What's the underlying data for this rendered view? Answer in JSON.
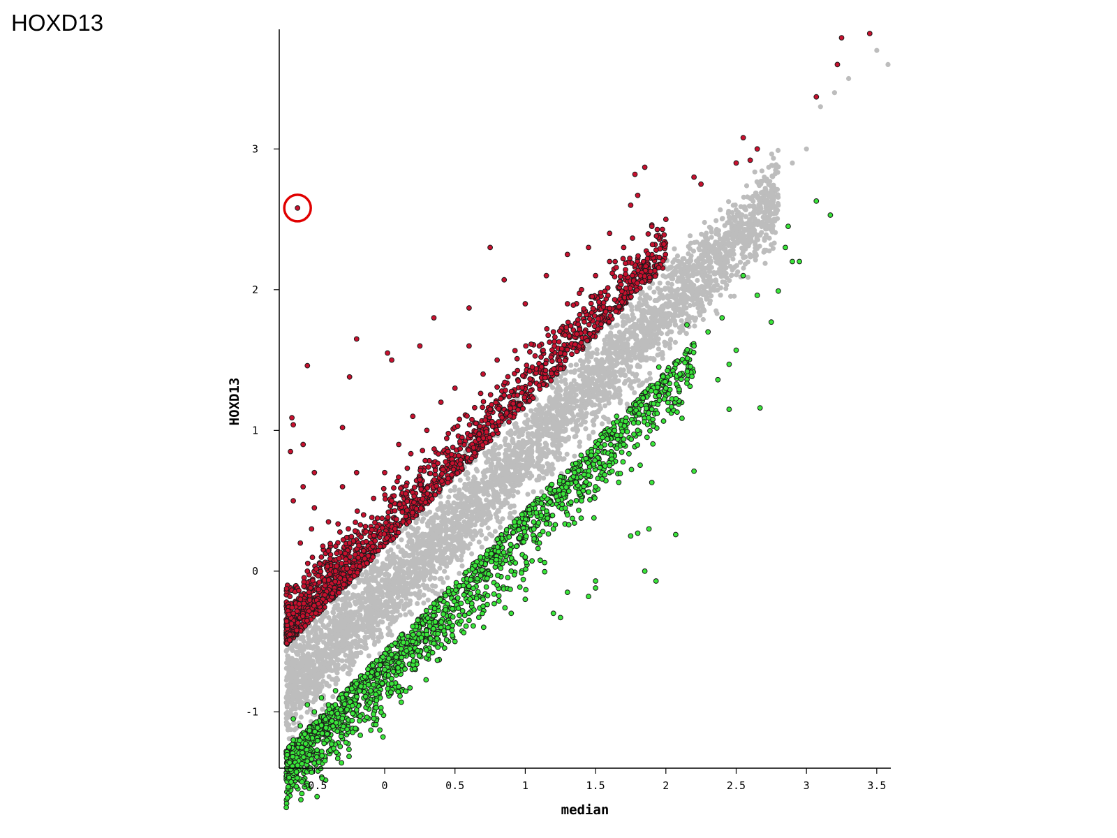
{
  "figure_title": "HOXD13",
  "chart_data": {
    "type": "scatter",
    "title": "",
    "xlabel": "median",
    "ylabel": "HOXD13",
    "xlim": [
      -0.75,
      3.6
    ],
    "ylim": [
      -1.4,
      3.85
    ],
    "x_ticks": [
      -0.5,
      0,
      0.5,
      1,
      1.5,
      2,
      2.5,
      3,
      3.5
    ],
    "x_tick_labels": [
      "-0.5",
      "0",
      "0.5",
      "1",
      "1.5",
      "2",
      "2.5",
      "3",
      "3.5"
    ],
    "y_ticks": [
      -1,
      0,
      1,
      2,
      3
    ],
    "y_tick_labels": [
      "-1",
      "0",
      "1",
      "2",
      "3"
    ],
    "grid": false,
    "colors": {
      "not_changed": "#bdbdbd",
      "up": "#c8102e",
      "down": "#39e639",
      "highlight_circle": "#e00000"
    },
    "series": [
      {
        "color_key": "not_changed",
        "note": "Dense band of points along y ≈ x − 0.15 (spread about ±0.3), x from -0.7 to 3.6",
        "points": [
          [
            -0.7,
            -0.9
          ],
          [
            -0.7,
            -0.3
          ],
          [
            -0.5,
            -0.4
          ],
          [
            -0.3,
            -0.2
          ],
          [
            0,
            -0.1
          ],
          [
            0.5,
            0.3
          ],
          [
            1,
            0.9
          ],
          [
            1.5,
            1.3
          ],
          [
            2,
            1.9
          ],
          [
            2.5,
            2.4
          ],
          [
            2.7,
            2.8
          ],
          [
            2.8,
            2.6
          ],
          [
            2.9,
            2.9
          ],
          [
            3.0,
            3.0
          ],
          [
            3.1,
            3.3
          ],
          [
            3.2,
            3.4
          ],
          [
            3.3,
            3.5
          ],
          [
            3.5,
            3.7
          ],
          [
            3.58,
            3.6
          ]
        ]
      },
      {
        "color_key": "up",
        "points": [
          [
            -0.62,
            2.58
          ],
          [
            -0.55,
            1.46
          ],
          [
            -0.66,
            1.09
          ],
          [
            -0.65,
            1.04
          ],
          [
            -0.67,
            0.85
          ],
          [
            -0.58,
            0.9
          ],
          [
            -0.2,
            1.65
          ],
          [
            -0.25,
            1.38
          ],
          [
            -0.3,
            1.02
          ],
          [
            0.02,
            1.55
          ],
          [
            0.05,
            1.5
          ],
          [
            0.25,
            1.6
          ],
          [
            0.35,
            1.8
          ],
          [
            0.6,
            1.87
          ],
          [
            0.75,
            2.3
          ],
          [
            0.85,
            2.07
          ],
          [
            0.6,
            1.6
          ],
          [
            1.0,
            1.9
          ],
          [
            1.15,
            2.1
          ],
          [
            1.3,
            2.25
          ],
          [
            1.45,
            2.3
          ],
          [
            1.6,
            2.4
          ],
          [
            1.75,
            2.6
          ],
          [
            1.8,
            2.67
          ],
          [
            1.85,
            2.87
          ],
          [
            1.78,
            2.82
          ],
          [
            2.2,
            2.8
          ],
          [
            2.25,
            2.75
          ],
          [
            2.5,
            2.9
          ],
          [
            2.6,
            2.92
          ],
          [
            2.55,
            3.08
          ],
          [
            2.65,
            3.0
          ],
          [
            3.07,
            3.37
          ],
          [
            3.22,
            3.6
          ],
          [
            3.25,
            3.79
          ],
          [
            3.45,
            3.82
          ],
          [
            -0.65,
            0.5
          ],
          [
            -0.6,
            0.2
          ],
          [
            -0.55,
            0.0
          ],
          [
            -0.6,
            -0.2
          ],
          [
            -0.65,
            -0.3
          ],
          [
            -0.5,
            0.45
          ],
          [
            -0.4,
            0.35
          ],
          [
            -0.3,
            0.6
          ],
          [
            -0.2,
            0.7
          ],
          [
            0.0,
            0.7
          ],
          [
            0.1,
            0.9
          ],
          [
            0.2,
            1.1
          ],
          [
            0.3,
            1.0
          ],
          [
            0.4,
            1.2
          ],
          [
            0.5,
            1.3
          ],
          [
            0.7,
            1.4
          ],
          [
            0.8,
            1.5
          ],
          [
            1.2,
            1.7
          ],
          [
            1.3,
            1.9
          ],
          [
            1.4,
            2.0
          ],
          [
            1.5,
            2.1
          ],
          [
            1.6,
            2.2
          ],
          [
            1.7,
            2.3
          ],
          [
            1.9,
            2.45
          ],
          [
            2.0,
            2.5
          ],
          [
            -0.5,
            0.7
          ],
          [
            -0.58,
            0.6
          ],
          [
            -0.52,
            0.3
          ],
          [
            -0.45,
            0.1
          ],
          [
            -0.35,
            0.0
          ],
          [
            -0.25,
            0.2
          ],
          [
            -0.15,
            0.4
          ],
          [
            0.05,
            0.5
          ],
          [
            0.15,
            0.55
          ],
          [
            0.25,
            0.65
          ],
          [
            0.35,
            0.75
          ],
          [
            0.45,
            0.85
          ],
          [
            0.55,
            0.95
          ],
          [
            0.65,
            1.05
          ],
          [
            0.75,
            1.15
          ],
          [
            0.85,
            1.25
          ],
          [
            0.95,
            1.35
          ],
          [
            1.05,
            1.45
          ],
          [
            1.1,
            1.6
          ],
          [
            1.25,
            1.55
          ]
        ]
      },
      {
        "color_key": "down",
        "points": [
          [
            -0.62,
            -1.38
          ],
          [
            -0.65,
            -1.2
          ],
          [
            -0.68,
            -1.25
          ],
          [
            -0.6,
            -1.1
          ],
          [
            -0.5,
            -1.0
          ],
          [
            -0.4,
            -0.95
          ],
          [
            -0.3,
            -0.9
          ],
          [
            -0.1,
            -0.85
          ],
          [
            0.05,
            -0.8
          ],
          [
            0.1,
            -0.82
          ],
          [
            0.2,
            -0.5
          ],
          [
            0.5,
            -0.5
          ],
          [
            0.6,
            -0.3
          ],
          [
            0.7,
            -0.25
          ],
          [
            0.9,
            -0.3
          ],
          [
            1.0,
            -0.2
          ],
          [
            1.2,
            -0.3
          ],
          [
            1.25,
            -0.33
          ],
          [
            1.3,
            -0.15
          ],
          [
            1.45,
            -0.18
          ],
          [
            1.5,
            -0.12
          ],
          [
            1.5,
            -0.07
          ],
          [
            1.75,
            0.25
          ],
          [
            1.8,
            0.27
          ],
          [
            1.88,
            0.3
          ],
          [
            1.85,
            0.0
          ],
          [
            1.93,
            -0.07
          ],
          [
            2.07,
            0.26
          ],
          [
            2.2,
            0.71
          ],
          [
            1.9,
            0.63
          ],
          [
            2.37,
            1.36
          ],
          [
            2.45,
            1.47
          ],
          [
            2.45,
            1.15
          ],
          [
            2.5,
            1.57
          ],
          [
            2.67,
            1.16
          ],
          [
            2.65,
            1.96
          ],
          [
            2.75,
            1.77
          ],
          [
            2.8,
            1.99
          ],
          [
            2.85,
            2.3
          ],
          [
            2.9,
            2.2
          ],
          [
            2.95,
            2.2
          ],
          [
            2.87,
            2.45
          ],
          [
            3.07,
            2.63
          ],
          [
            3.17,
            2.53
          ],
          [
            2.55,
            2.1
          ],
          [
            2.4,
            1.8
          ],
          [
            2.3,
            1.7
          ],
          [
            2.2,
            1.6
          ],
          [
            2.1,
            1.4
          ],
          [
            2.0,
            1.3
          ],
          [
            1.9,
            1.15
          ],
          [
            1.8,
            1.0
          ],
          [
            1.7,
            0.9
          ],
          [
            1.6,
            0.75
          ],
          [
            1.5,
            0.6
          ],
          [
            1.4,
            0.5
          ],
          [
            1.3,
            0.4
          ],
          [
            1.2,
            0.3
          ],
          [
            1.1,
            0.2
          ],
          [
            1.0,
            0.1
          ],
          [
            0.9,
            0.0
          ],
          [
            0.8,
            -0.1
          ],
          [
            0.7,
            -0.2
          ],
          [
            0.6,
            -0.35
          ],
          [
            0.4,
            -0.4
          ],
          [
            0.3,
            -0.45
          ],
          [
            0.2,
            -0.6
          ],
          [
            0.1,
            -0.65
          ],
          [
            0.0,
            -0.7
          ],
          [
            -0.1,
            -0.75
          ],
          [
            -0.2,
            -0.8
          ],
          [
            -0.35,
            -0.85
          ],
          [
            -0.45,
            -0.9
          ],
          [
            -0.55,
            -0.95
          ],
          [
            -0.65,
            -1.05
          ],
          [
            1.35,
            0.7
          ],
          [
            1.55,
            0.95
          ],
          [
            1.65,
            1.1
          ],
          [
            1.95,
            1.45
          ],
          [
            2.15,
            1.75
          ]
        ]
      }
    ],
    "highlighted_point": {
      "x": -0.62,
      "y": 2.58
    }
  }
}
